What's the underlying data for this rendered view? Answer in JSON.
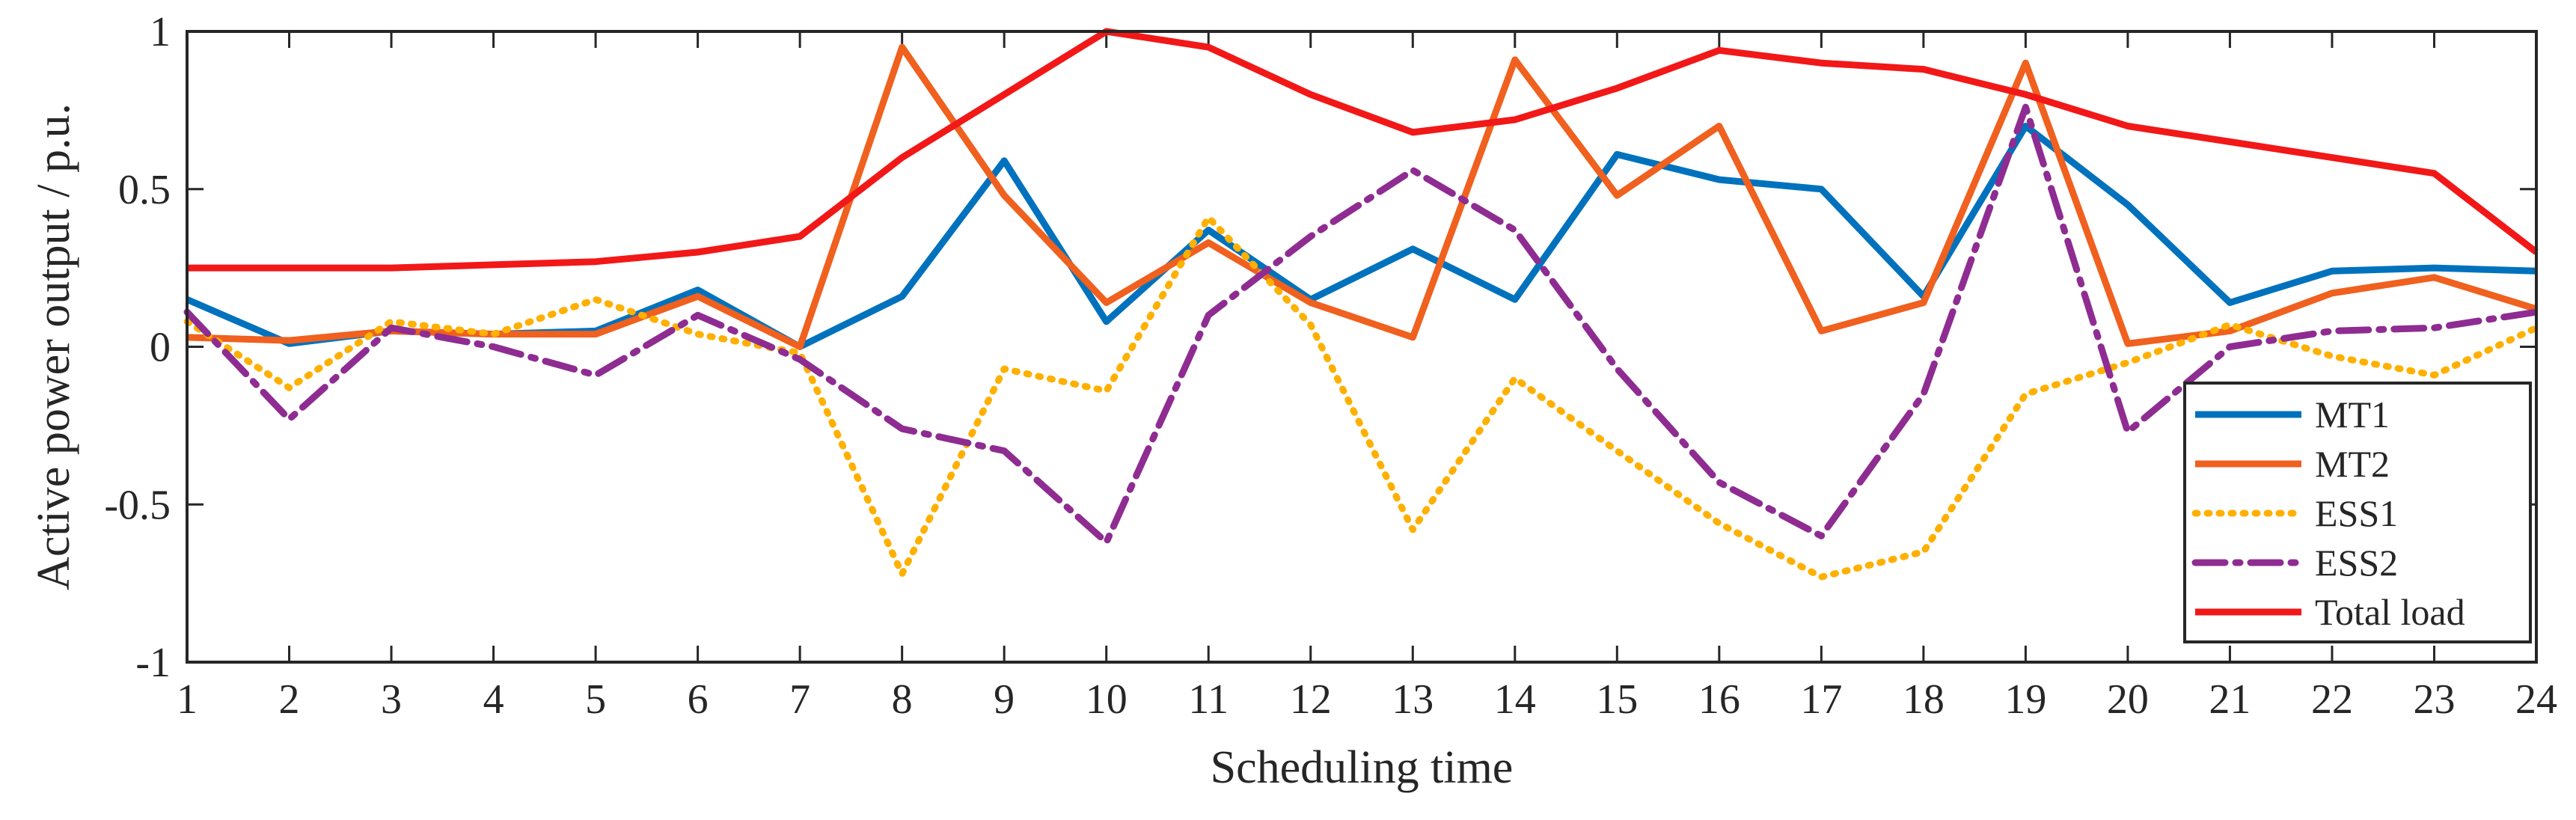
{
  "chart_data": {
    "type": "line",
    "title": "",
    "xlabel": "Scheduling time",
    "ylabel": "Active power output / p.u.",
    "x": [
      1,
      2,
      3,
      4,
      5,
      6,
      7,
      8,
      9,
      10,
      11,
      12,
      13,
      14,
      15,
      16,
      17,
      18,
      19,
      20,
      21,
      22,
      23,
      24
    ],
    "xlim": [
      1,
      24
    ],
    "ylim": [
      -1,
      1
    ],
    "yticks": [
      -1,
      -0.5,
      0,
      0.5,
      1
    ],
    "ytick_labels": [
      "-1",
      "-0.5",
      "0",
      "0.5",
      "1"
    ],
    "xtick_labels": [
      "1",
      "2",
      "3",
      "4",
      "5",
      "6",
      "7",
      "8",
      "9",
      "10",
      "11",
      "12",
      "13",
      "14",
      "15",
      "16",
      "17",
      "18",
      "19",
      "20",
      "21",
      "22",
      "23",
      "24"
    ],
    "legend_position": "bottom-right",
    "grid": false,
    "series": [
      {
        "name": "MT1",
        "color": "#0072BD",
        "dash": "solid",
        "values": [
          0.15,
          0.01,
          0.05,
          0.04,
          0.05,
          0.18,
          0.0,
          0.16,
          0.59,
          0.08,
          0.37,
          0.15,
          0.31,
          0.15,
          0.61,
          0.53,
          0.5,
          0.16,
          0.7,
          0.45,
          0.14,
          0.24,
          0.25,
          0.24
        ]
      },
      {
        "name": "MT2",
        "color": "#F0601E",
        "dash": "solid",
        "values": [
          0.03,
          0.02,
          0.05,
          0.04,
          0.04,
          0.16,
          0.0,
          0.95,
          0.48,
          0.14,
          0.33,
          0.14,
          0.03,
          0.91,
          0.48,
          0.7,
          0.05,
          0.14,
          0.9,
          0.01,
          0.05,
          0.17,
          0.22,
          0.12
        ]
      },
      {
        "name": "ESS1",
        "color": "#FFB000",
        "dash": "dotted",
        "values": [
          0.08,
          -0.13,
          0.08,
          0.04,
          0.15,
          0.04,
          -0.02,
          -0.72,
          -0.07,
          -0.14,
          0.41,
          0.07,
          -0.58,
          -0.1,
          -0.33,
          -0.56,
          -0.73,
          -0.65,
          -0.15,
          -0.05,
          0.07,
          -0.03,
          -0.09,
          0.06
        ]
      },
      {
        "name": "ESS2",
        "color": "#8E2C92",
        "dash": "dashdot",
        "values": [
          0.11,
          -0.23,
          0.06,
          0.0,
          -0.09,
          0.1,
          -0.04,
          -0.26,
          -0.33,
          -0.62,
          0.1,
          0.35,
          0.56,
          0.37,
          -0.07,
          -0.43,
          -0.6,
          -0.15,
          0.76,
          -0.27,
          0.0,
          0.05,
          0.06,
          0.11
        ]
      },
      {
        "name": "Total load",
        "color": "#F21818",
        "dash": "solid",
        "values": [
          0.25,
          0.25,
          0.25,
          0.26,
          0.27,
          0.3,
          0.35,
          0.6,
          0.8,
          1.0,
          0.95,
          0.8,
          0.68,
          0.72,
          0.82,
          0.94,
          0.9,
          0.88,
          0.8,
          0.7,
          0.65,
          0.6,
          0.55,
          0.3
        ]
      }
    ]
  }
}
